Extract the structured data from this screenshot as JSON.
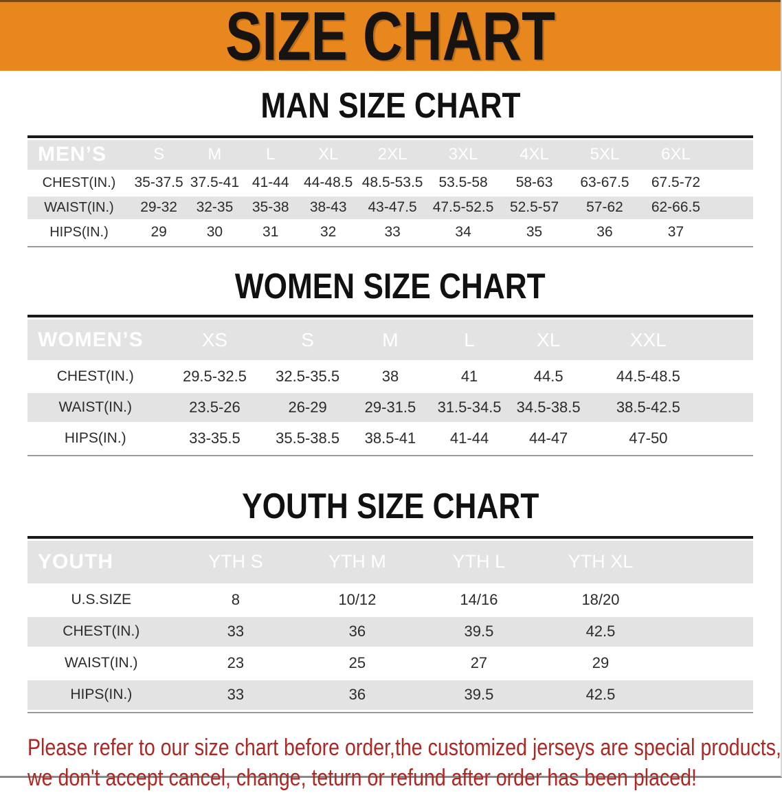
{
  "banner": {
    "title": "SIZE CHART"
  },
  "sections": [
    {
      "heading": "MAN SIZE CHART",
      "group_label": "MEN’S",
      "sizes": [
        "S",
        "M",
        "L",
        "XL",
        "2XL",
        "3XL",
        "4XL",
        "5XL",
        "6XL"
      ],
      "rows": [
        {
          "label": "CHEST(IN.)",
          "values": [
            "35-37.5",
            "37.5-41",
            "41-44",
            "44-48.5",
            "48.5-53.5",
            "53.5-58",
            "58-63",
            "63-67.5",
            "67.5-72"
          ]
        },
        {
          "label": "WAIST(IN.)",
          "values": [
            "29-32",
            "32-35",
            "35-38",
            "38-43",
            "43-47.5",
            "47.5-52.5",
            "52.5-57",
            "57-62",
            "62-66.5"
          ]
        },
        {
          "label": "HIPS(IN.)",
          "values": [
            "29",
            "30",
            "31",
            "32",
            "33",
            "34",
            "35",
            "36",
            "37"
          ]
        }
      ]
    },
    {
      "heading": "WOMEN SIZE CHART",
      "group_label": "WOMEN’S",
      "sizes": [
        "XS",
        "S",
        "M",
        "L",
        "XL",
        "XXL"
      ],
      "rows": [
        {
          "label": "CHEST(IN.)",
          "values": [
            "29.5-32.5",
            "32.5-35.5",
            "38",
            "41",
            "44.5",
            "44.5-48.5"
          ]
        },
        {
          "label": "WAIST(IN.)",
          "values": [
            "23.5-26",
            "26-29",
            "29-31.5",
            "31.5-34.5",
            "34.5-38.5",
            "38.5-42.5"
          ]
        },
        {
          "label": "HIPS(IN.)",
          "values": [
            "33-35.5",
            "35.5-38.5",
            "38.5-41",
            "41-44",
            "44-47",
            "47-50"
          ]
        }
      ]
    },
    {
      "heading": "YOUTH SIZE CHART",
      "group_label": "YOUTH",
      "sizes": [
        "YTH S",
        "YTH M",
        "YTH L",
        "YTH XL"
      ],
      "rows": [
        {
          "label": "U.S.SIZE",
          "values": [
            "8",
            "10/12",
            "14/16",
            "18/20"
          ]
        },
        {
          "label": "CHEST(IN.)",
          "values": [
            "33",
            "36",
            "39.5",
            "42.5"
          ]
        },
        {
          "label": "WAIST(IN.)",
          "values": [
            "23",
            "25",
            "27",
            "29"
          ]
        },
        {
          "label": "HIPS(IN.)",
          "values": [
            "33",
            "36",
            "39.5",
            "42.5"
          ]
        }
      ]
    }
  ],
  "footer": {
    "line1": "Please refer to our size chart before order,the customized jerseys are special products,",
    "line2": "we don't accept cancel, change, teturn or refund after order has been placed!"
  },
  "colors": {
    "banner_bg": "#E8871D",
    "header_bg": "#151515",
    "row_alt_bg": "#E3E3E3",
    "footer_text": "#AE2722"
  }
}
